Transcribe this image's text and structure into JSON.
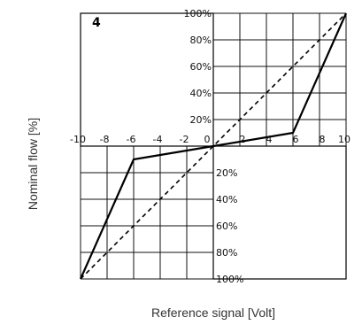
{
  "chart_data": {
    "type": "line",
    "panel_label": "4",
    "xlabel": "Reference signal [Volt]",
    "ylabel": "Nominal flow [%]",
    "xlim": [
      -10,
      10
    ],
    "ylim": [
      -100,
      100
    ],
    "x_ticks": [
      "-10",
      "-8",
      "-6",
      "-4",
      "-2",
      "0",
      "2",
      "4",
      "6",
      "8",
      "10"
    ],
    "y_ticks_positive": [
      "20%",
      "40%",
      "60%",
      "80%",
      "100%"
    ],
    "y_ticks_negative": [
      "20%",
      "40%",
      "60%",
      "80%",
      "100%"
    ],
    "grid": true,
    "series": [
      {
        "style": "solid",
        "color": "#000000",
        "points": [
          [
            -10,
            -100
          ],
          [
            -6,
            -10
          ],
          [
            0,
            0
          ],
          [
            6,
            10
          ],
          [
            10,
            100
          ]
        ]
      },
      {
        "style": "dashed",
        "color": "#000000",
        "points": [
          [
            -10,
            -100
          ],
          [
            10,
            100
          ]
        ]
      }
    ]
  }
}
